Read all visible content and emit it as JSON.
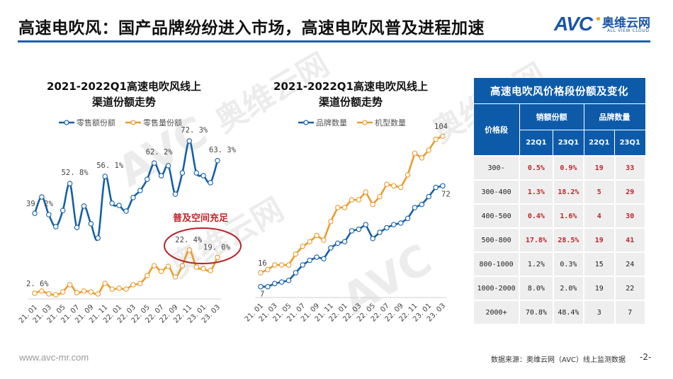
{
  "header": {
    "title": "高速电吹风：国产品牌纷纷进入市场，高速电吹风普及进程加速",
    "logo": {
      "mark": "AVC",
      "cn": "奥维云网",
      "en": "ALL VIEW CLOUD"
    }
  },
  "colors": {
    "accent_blue": "#1f5fa8",
    "series_blue": "#1560a8",
    "series_orange": "#eb9c2f",
    "highlight_red": "#c0262b",
    "table_header": "#0d5ba8"
  },
  "left_chart": {
    "title_line1": "2021-2022Q1高速电吹风线上",
    "title_line2": "渠道份额走势",
    "legend": [
      "零售额份额",
      "零售量份额"
    ],
    "annotation": "普及空间充足"
  },
  "right_chart": {
    "title_line1": "2021-2022Q1高速电吹风线上",
    "title_line2": "渠道份额走势",
    "legend": [
      "品牌数量",
      "机型数量"
    ]
  },
  "chart_data": [
    {
      "type": "line",
      "title": "2021-2022Q1高速电吹风线上渠道份额走势",
      "x": [
        "21.01",
        "21.02",
        "21.03",
        "21.04",
        "21.05",
        "21.06",
        "21.07",
        "21.08",
        "21.09",
        "21.10",
        "21.11",
        "21.12",
        "22.01",
        "22.02",
        "22.03",
        "22.04",
        "22.05",
        "22.06",
        "22.07",
        "22.08",
        "22.09",
        "22.10",
        "22.11",
        "22.12",
        "23.01",
        "23.02",
        "23.03"
      ],
      "x_tick_labels": [
        "21.01",
        "21.03",
        "21.05",
        "21.07",
        "21.09",
        "21.11",
        "22.01",
        "22.03",
        "22.05",
        "22.07",
        "22.09",
        "22.11",
        "23.01",
        "23.03"
      ],
      "series": [
        {
          "name": "零售额份额",
          "unit": "%",
          "values": [
            39.2,
            46.7,
            38.6,
            33.1,
            40.5,
            52.8,
            32.7,
            42.5,
            34.4,
            27.9,
            56.1,
            43.8,
            42.8,
            40.2,
            46.4,
            49.6,
            54.8,
            62.2,
            56.4,
            61.0,
            48.0,
            57.7,
            72.3,
            57.7,
            56.4,
            53.2,
            63.3
          ],
          "labels": {
            "0": "39.2%",
            "5": "52.8%",
            "10": "56.1%",
            "17": "62.2%",
            "22": "72.3%",
            "26": "63.3%"
          }
        },
        {
          "name": "零售量份额",
          "unit": "%",
          "values": [
            2.6,
            3.6,
            2.3,
            1.9,
            3.2,
            6.5,
            2.9,
            3.6,
            3.2,
            2.3,
            7.1,
            4.5,
            4.9,
            4.5,
            6.5,
            7.1,
            10.7,
            15.2,
            12.6,
            14.9,
            10.1,
            15.2,
            22.4,
            14.6,
            13.9,
            13.0,
            19.0
          ],
          "labels": {
            "0": "2.6%",
            "22": "22.4%",
            "26": "19.0%"
          }
        }
      ],
      "ylim": [
        0,
        80
      ],
      "grid": false,
      "legend_position": "top",
      "annotations": [
        "普及空间充足"
      ]
    },
    {
      "type": "line",
      "title": "2021-2022Q1高速电吹风线上渠道份额走势",
      "x": [
        "21.01",
        "21.02",
        "21.03",
        "21.04",
        "21.05",
        "21.06",
        "21.07",
        "21.08",
        "21.09",
        "21.10",
        "21.11",
        "21.12",
        "22.01",
        "22.02",
        "22.03",
        "22.04",
        "22.05",
        "22.06",
        "22.07",
        "22.08",
        "22.09",
        "22.10",
        "22.11",
        "22.12",
        "23.01",
        "23.02",
        "23.03"
      ],
      "x_tick_labels": [
        "21.01",
        "21.03",
        "21.05",
        "21.07",
        "21.09",
        "21.11",
        "22.01",
        "22.03",
        "22.05",
        "22.07",
        "22.09",
        "22.11",
        "23.01",
        "23.03"
      ],
      "series": [
        {
          "name": "品牌数量",
          "values": [
            7,
            7,
            9,
            10,
            11,
            16,
            21,
            24,
            26,
            25,
            32,
            35,
            36,
            43,
            44,
            47,
            38,
            42,
            45,
            47,
            48,
            51,
            58,
            60,
            65,
            71,
            72
          ],
          "labels": {
            "0": "7",
            "26": "72"
          }
        },
        {
          "name": "机型数量",
          "values": [
            16,
            18,
            21,
            21,
            21,
            28,
            33,
            36,
            40,
            37,
            49,
            58,
            58,
            63,
            63,
            68,
            60,
            65,
            73,
            72,
            71,
            79,
            93,
            90,
            95,
            102,
            104
          ],
          "labels": {
            "0": "16",
            "26": "104"
          }
        }
      ],
      "ylim": [
        0,
        110
      ],
      "grid": false,
      "legend_position": "top"
    },
    {
      "type": "table",
      "title": "高速电吹风价格段份额及变化",
      "columns": [
        "价格段",
        "销额份额 22Q1",
        "销额份额 23Q1",
        "品牌数量 22Q1",
        "品牌数量 23Q1"
      ],
      "rows": [
        [
          "300-",
          "0.5%",
          "0.9%",
          "19",
          "33"
        ],
        [
          "300-400",
          "1.3%",
          "18.2%",
          "5",
          "29"
        ],
        [
          "400-500",
          "0.4%",
          "1.6%",
          "4",
          "30"
        ],
        [
          "500-800",
          "17.8%",
          "28.5%",
          "19",
          "41"
        ],
        [
          "800-1000",
          "1.2%",
          "0.3%",
          "15",
          "24"
        ],
        [
          "1000-2000",
          "8.0%",
          "2.0%",
          "19",
          "22"
        ],
        [
          "2000+",
          "70.8%",
          "48.4%",
          "3",
          "7"
        ]
      ]
    }
  ],
  "table": {
    "title": "高速电吹风价格段份额及变化",
    "col_price": "价格段",
    "group_sales": "销额份额",
    "group_brands": "品牌数量",
    "sub": [
      "22Q1",
      "23Q1",
      "22Q1",
      "23Q1"
    ],
    "rows": [
      {
        "price": "300-",
        "s22": "0.5%",
        "s23": "0.9%",
        "b22": "19",
        "b23": "33",
        "highlight": true
      },
      {
        "price": "300-400",
        "s22": "1.3%",
        "s23": "18.2%",
        "b22": "5",
        "b23": "29",
        "highlight": true
      },
      {
        "price": "400-500",
        "s22": "0.4%",
        "s23": "1.6%",
        "b22": "4",
        "b23": "30",
        "highlight": true
      },
      {
        "price": "500-800",
        "s22": "17.8%",
        "s23": "28.5%",
        "b22": "19",
        "b23": "41",
        "highlight": true
      },
      {
        "price": "800-1000",
        "s22": "1.2%",
        "s23": "0.3%",
        "b22": "15",
        "b23": "24",
        "highlight": false
      },
      {
        "price": "1000-2000",
        "s22": "8.0%",
        "s23": "2.0%",
        "b22": "19",
        "b23": "22",
        "highlight": false
      },
      {
        "price": "2000+",
        "s22": "70.8%",
        "s23": "48.4%",
        "b22": "3",
        "b23": "7",
        "highlight": false
      }
    ]
  },
  "footer": {
    "url": "www.avc-mr.com",
    "source": "数据来源：奥维云网（AVC）线上监测数据",
    "page": "-2-"
  },
  "watermark": {
    "mark": "AVC",
    "cn": "奥维云网",
    "en": "ALL VIEW CLOUD"
  }
}
